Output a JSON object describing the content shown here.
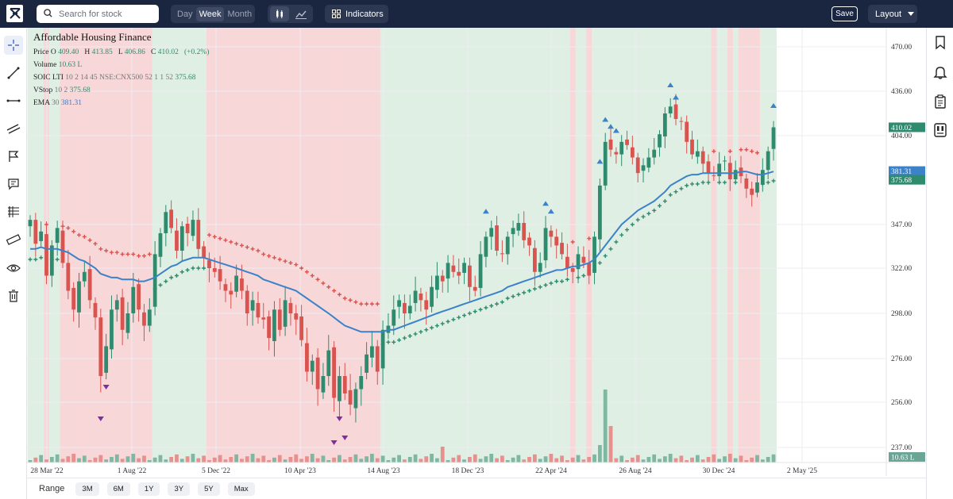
{
  "topbar": {
    "search_placeholder": "Search for stock",
    "timeframes": [
      "Day",
      "Week",
      "Month"
    ],
    "active_timeframe": "Week",
    "indicators_label": "Indicators",
    "save_label": "Save",
    "layout_label": "Layout"
  },
  "legend": {
    "title": "Affordable Housing Finance",
    "price_label": "Price",
    "o_label": "O",
    "o_value": "409.40",
    "h_label": "H",
    "h_value": "413.85",
    "l_label": "L",
    "l_value": "406.86",
    "c_label": "C",
    "c_value": "410.02",
    "change": "(+0.2%)",
    "volume_label": "Volume",
    "volume_value": "10.63 L",
    "soic_label": "SOIC LTI",
    "soic_params": "10 2 14 45 NSE:CNX500 52 1 1 52",
    "soic_value": "375.68",
    "vstop_label": "VStop",
    "vstop_params": "10 2",
    "vstop_value": "375.68",
    "ema_label": "EMA",
    "ema_params": "30",
    "ema_value": "381.31"
  },
  "colors": {
    "up": "#2e8b6e",
    "down": "#d9534f",
    "ema": "#3b82c9",
    "bg_up": "#e0efe4",
    "bg_down": "#f8d7d8",
    "marker_up": "#3b82c9",
    "marker_down": "#7b2fa0"
  },
  "range_bar": {
    "label": "Range",
    "buttons": [
      "3M",
      "6M",
      "1Y",
      "3Y",
      "5Y",
      "Max"
    ]
  },
  "chart_data": {
    "type": "candlestick",
    "y_ticks": [
      "470.00",
      "436.00",
      "404.00",
      "347.00",
      "322.00",
      "298.00",
      "276.00",
      "256.00",
      "237.00"
    ],
    "x_ticks": [
      "28 Mar '22",
      "1 Aug '22",
      "5 Dec '22",
      "10 Apr '23",
      "14 Aug '23",
      "18 Dec '23",
      "22 Apr '24",
      "26 Aug '24",
      "30 Dec '24",
      "2 May '25"
    ],
    "price_labels": [
      {
        "text": "410.02",
        "value": 410.02,
        "color": "#2e8b6e"
      },
      {
        "text": "381.31",
        "value": 381.31,
        "color": "#3b82c9"
      },
      {
        "text": "375.68",
        "value": 375.68,
        "color": "#2e8b6e"
      }
    ],
    "volume_label": "10.63 L",
    "closes": [
      350,
      336,
      343,
      318,
      335,
      345,
      325,
      310,
      300,
      315,
      320,
      305,
      296,
      268,
      282,
      300,
      305,
      290,
      298,
      312,
      300,
      292,
      300,
      330,
      342,
      355,
      345,
      332,
      346,
      342,
      350,
      333,
      328,
      322,
      320,
      315,
      310,
      308,
      318,
      310,
      298,
      305,
      296,
      295,
      286,
      300,
      290,
      305,
      298,
      295,
      285,
      270,
      275,
      262,
      268,
      280,
      258,
      268,
      260,
      255,
      262,
      268,
      278,
      282,
      270,
      290,
      292,
      300,
      305,
      298,
      302,
      310,
      305,
      300,
      312,
      318,
      315,
      325,
      320,
      318,
      325,
      312,
      310,
      330,
      340,
      345,
      332,
      330,
      340,
      345,
      348,
      338,
      335,
      320,
      325,
      345,
      340,
      335,
      330,
      322,
      320,
      330,
      325,
      318,
      340,
      372,
      400,
      395,
      392,
      400,
      398,
      390,
      380,
      385,
      390,
      395,
      405,
      420,
      425,
      416,
      414,
      400,
      392,
      394,
      386,
      380,
      378,
      386,
      388,
      376,
      382,
      378,
      370,
      366,
      374,
      382,
      394,
      410
    ],
    "ema": [
      333,
      333,
      334,
      333,
      333,
      333,
      332,
      331,
      329,
      327,
      326,
      324,
      322,
      319,
      318,
      317,
      317,
      316,
      316,
      316,
      315,
      315,
      316,
      317,
      319,
      321,
      323,
      324,
      326,
      327,
      328,
      328,
      328,
      327,
      326,
      325,
      324,
      323,
      322,
      321,
      320,
      319,
      318,
      316,
      315,
      314,
      313,
      312,
      311,
      310,
      308,
      306,
      304,
      302,
      300,
      298,
      296,
      294,
      292,
      291,
      290,
      289,
      289,
      289,
      289,
      289,
      290,
      290,
      291,
      292,
      293,
      294,
      295,
      296,
      297,
      298,
      299,
      300,
      301,
      302,
      303,
      304,
      305,
      306,
      307,
      308,
      309,
      310,
      312,
      313,
      314,
      315,
      316,
      317,
      318,
      319,
      320,
      321,
      321,
      322,
      323,
      323,
      324,
      325,
      327,
      331,
      335,
      339,
      343,
      347,
      350,
      353,
      356,
      358,
      360,
      362,
      365,
      368,
      372,
      374,
      376,
      378,
      379,
      379,
      380,
      380,
      380,
      380,
      380,
      380,
      380,
      381,
      381,
      380,
      379,
      379,
      380,
      381
    ]
  }
}
